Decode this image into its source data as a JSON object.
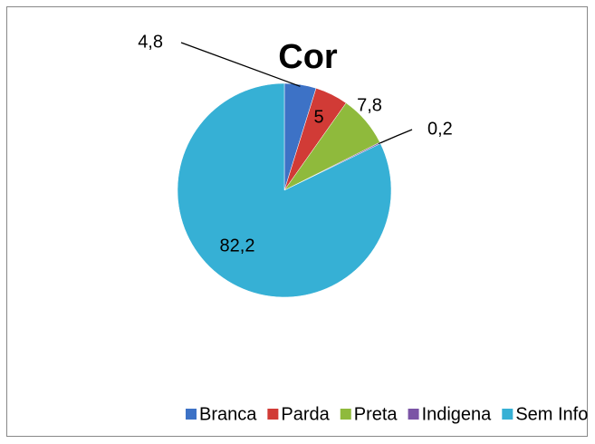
{
  "chart_data": {
    "type": "pie",
    "title": "Cor",
    "categories": [
      "Branca",
      "Parda",
      "Preta",
      "Indigena",
      "Sem Info"
    ],
    "values": [
      4.8,
      5,
      7.8,
      0.2,
      82.2
    ],
    "value_labels": [
      "4,8",
      "5",
      "7,8",
      "0,2",
      "82,2"
    ],
    "colors": [
      "#3d72c6",
      "#d13b36",
      "#8fba3c",
      "#7b54a6",
      "#36b0d5"
    ],
    "legend": "bottom"
  }
}
